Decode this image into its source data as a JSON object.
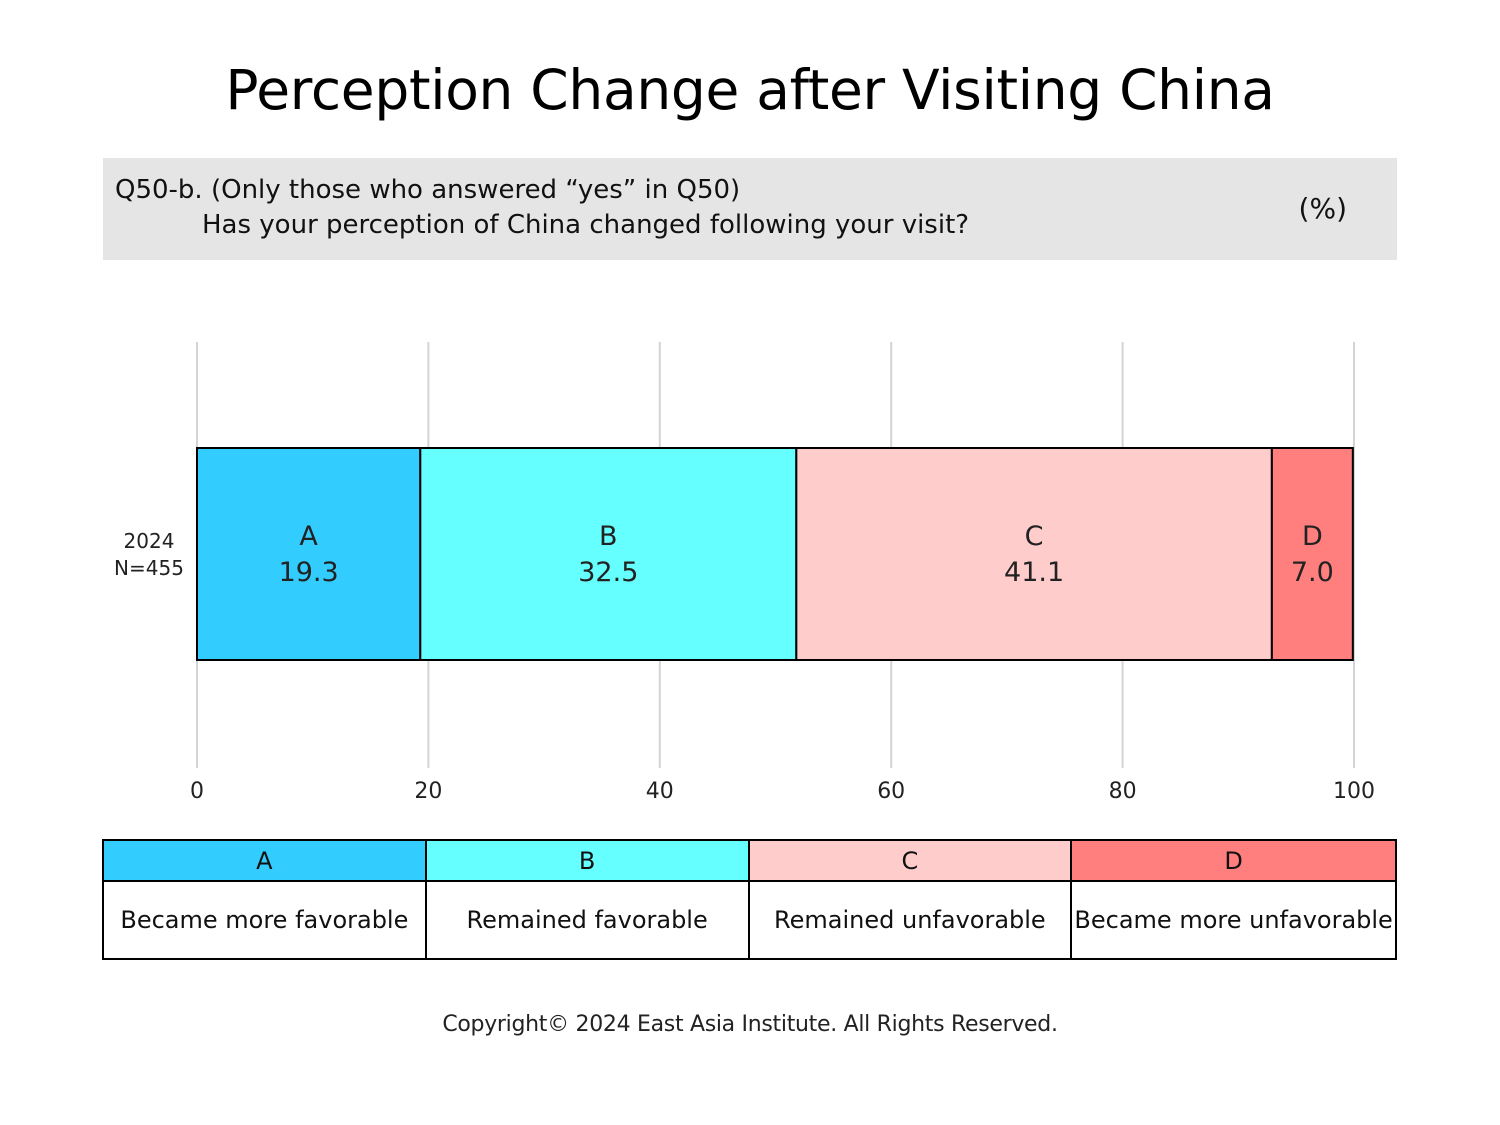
{
  "title": "Perception Change after Visiting China",
  "question": {
    "line1": "Q50-b. (Only those who answered “yes” in Q50)",
    "line2": "Has your perception of China changed following your visit?",
    "unit": "(%)"
  },
  "chart_data": {
    "type": "bar",
    "orientation": "horizontal",
    "stacked": true,
    "categories": [
      "2024\nN=455"
    ],
    "row_label": {
      "year": "2024",
      "n": "N=455"
    },
    "series": [
      {
        "name": "A",
        "values": [
          19.3
        ],
        "color": "#33ccff"
      },
      {
        "name": "B",
        "values": [
          32.5
        ],
        "color": "#66ffff"
      },
      {
        "name": "C",
        "values": [
          41.1
        ],
        "color": "#ffcccc"
      },
      {
        "name": "D",
        "values": [
          7.0
        ],
        "color": "#ff7f7f"
      }
    ],
    "data_labels": [
      "19.3",
      "32.5",
      "41.1",
      "7.0"
    ],
    "x_ticks": [
      "0",
      "20",
      "40",
      "60",
      "80",
      "100"
    ],
    "xlim": [
      0,
      100
    ],
    "grid": true,
    "legend": "table-bottom"
  },
  "legend_table": [
    {
      "key": "A",
      "label": "Became more favorable",
      "color": "#33ccff"
    },
    {
      "key": "B",
      "label": "Remained favorable",
      "color": "#66ffff"
    },
    {
      "key": "C",
      "label": "Remained unfavorable",
      "color": "#ffcccc"
    },
    {
      "key": "D",
      "label": "Became more unfavorable",
      "color": "#ff7f7f"
    }
  ],
  "copyright": "Copyright© 2024 East Asia Institute. All Rights Reserved."
}
